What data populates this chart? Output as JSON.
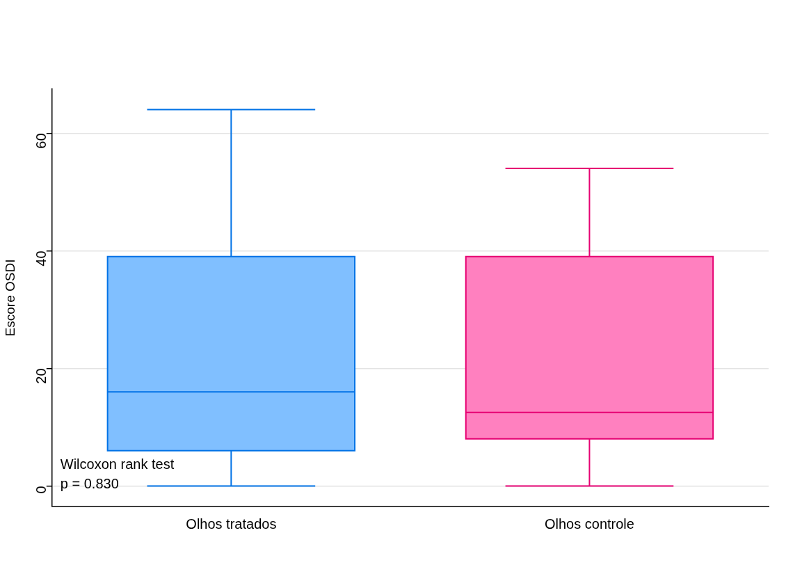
{
  "chart_data": {
    "type": "box",
    "ylabel": "Escore OSDI",
    "categories": [
      "Olhos tratados",
      "Olhos controle"
    ],
    "boxes": [
      {
        "low": 0,
        "q1": 6,
        "median": 16,
        "q3": 39,
        "high": 64
      },
      {
        "low": 0,
        "q1": 8,
        "median": 12.5,
        "q3": 39,
        "high": 54
      }
    ],
    "colors": [
      "#80bfff",
      "#ff80bf"
    ],
    "ylim": [
      -3.5,
      67.5
    ],
    "yticks": [
      0,
      20,
      40,
      60
    ],
    "grid": "y",
    "annotations": [
      "Wilcoxon rank test",
      "p = 0.830"
    ]
  }
}
